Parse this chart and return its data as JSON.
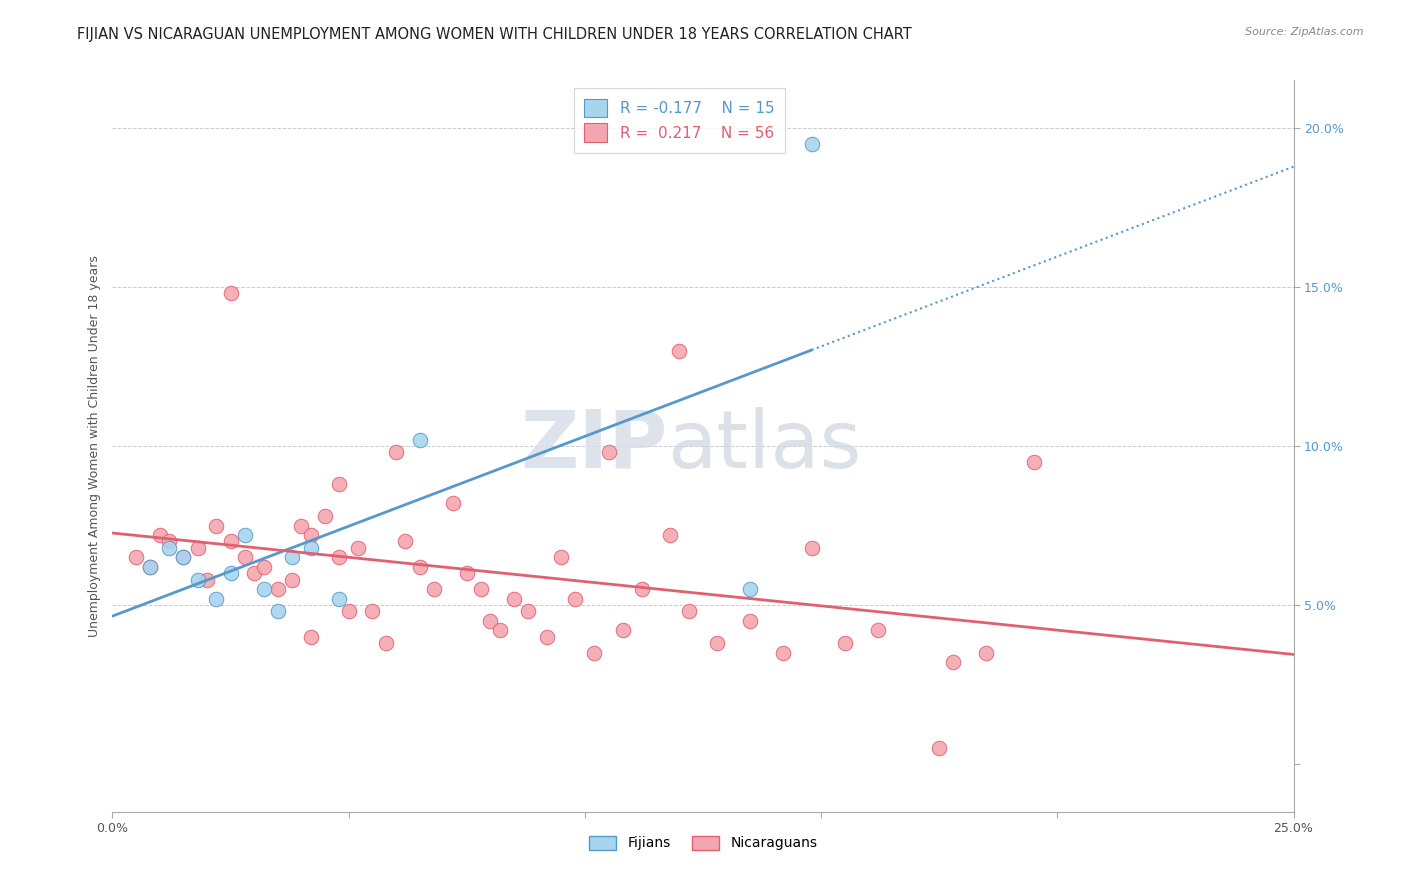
{
  "title": "FIJIAN VS NICARAGUAN UNEMPLOYMENT AMONG WOMEN WITH CHILDREN UNDER 18 YEARS CORRELATION CHART",
  "source": "Source: ZipAtlas.com",
  "ylabel": "Unemployment Among Women with Children Under 18 years",
  "x_tick_labels": [
    "0.0%",
    "",
    "",
    "",
    "",
    "25.0%"
  ],
  "y_right_labels": [
    "",
    "5.0%",
    "10.0%",
    "15.0%",
    "20.0%"
  ],
  "xlim": [
    0.0,
    0.25
  ],
  "ylim": [
    -0.015,
    0.215
  ],
  "fijian_color": "#A8D4EE",
  "nicaraguan_color": "#F4A6B0",
  "fijian_line_color": "#5599CC",
  "nicaraguan_line_color": "#E06070",
  "legend_R_fijian": "-0.177",
  "legend_N_fijian": "15",
  "legend_R_nicaraguan": "0.217",
  "legend_N_nicaraguan": "56",
  "fijian_x": [
    0.008,
    0.012,
    0.015,
    0.018,
    0.022,
    0.025,
    0.028,
    0.032,
    0.035,
    0.038,
    0.042,
    0.048,
    0.065,
    0.135,
    0.148
  ],
  "fijian_y": [
    0.062,
    0.068,
    0.065,
    0.058,
    0.052,
    0.06,
    0.072,
    0.055,
    0.048,
    0.065,
    0.068,
    0.052,
    0.102,
    0.055,
    0.195
  ],
  "nicaraguan_x": [
    0.005,
    0.008,
    0.01,
    0.012,
    0.015,
    0.018,
    0.02,
    0.022,
    0.025,
    0.025,
    0.028,
    0.03,
    0.032,
    0.035,
    0.038,
    0.04,
    0.042,
    0.042,
    0.045,
    0.048,
    0.048,
    0.05,
    0.052,
    0.055,
    0.058,
    0.06,
    0.062,
    0.065,
    0.068,
    0.072,
    0.075,
    0.078,
    0.08,
    0.082,
    0.085,
    0.088,
    0.092,
    0.095,
    0.098,
    0.102,
    0.105,
    0.108,
    0.112,
    0.118,
    0.122,
    0.128,
    0.135,
    0.142,
    0.148,
    0.155,
    0.162,
    0.178,
    0.185,
    0.195,
    0.12,
    0.175
  ],
  "nicaraguan_y": [
    0.065,
    0.062,
    0.072,
    0.07,
    0.065,
    0.068,
    0.058,
    0.075,
    0.07,
    0.148,
    0.065,
    0.06,
    0.062,
    0.055,
    0.058,
    0.075,
    0.072,
    0.04,
    0.078,
    0.065,
    0.088,
    0.048,
    0.068,
    0.048,
    0.038,
    0.098,
    0.07,
    0.062,
    0.055,
    0.082,
    0.06,
    0.055,
    0.045,
    0.042,
    0.052,
    0.048,
    0.04,
    0.065,
    0.052,
    0.035,
    0.098,
    0.042,
    0.055,
    0.072,
    0.048,
    0.038,
    0.045,
    0.035,
    0.068,
    0.038,
    0.042,
    0.032,
    0.035,
    0.095,
    0.13,
    0.005
  ],
  "background_color": "#FFFFFF",
  "title_fontsize": 10.5,
  "axis_label_fontsize": 9,
  "tick_fontsize": 9
}
